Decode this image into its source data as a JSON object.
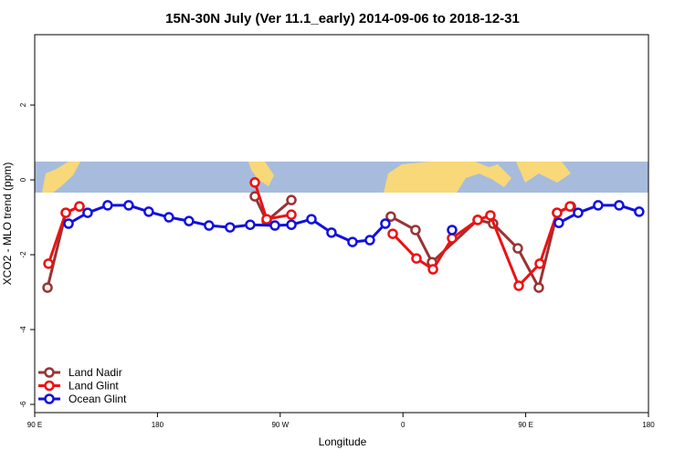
{
  "chart_data": {
    "type": "line",
    "title": "15N-30N July (Ver 11.1_early)   2014-09-06 to 2018-12-31",
    "x_label": "Longitude",
    "y_label": "XCO2 - MLO trend (ppm)",
    "xlim": [
      90,
      540
    ],
    "xticks": [
      {
        "value": 90,
        "label": "90 E"
      },
      {
        "value": 180,
        "label": "180"
      },
      {
        "value": 270,
        "label": "90 W"
      },
      {
        "value": 360,
        "label": "0"
      },
      {
        "value": 450,
        "label": "90 E"
      },
      {
        "value": 540,
        "label": "180"
      }
    ],
    "ylim": [
      -6.22,
      3.88
    ],
    "yticks": [
      -6,
      -4,
      -2,
      0,
      2
    ],
    "legend": "bottom-left",
    "series": [
      {
        "name": "Land Nadir",
        "color": "#993333",
        "x": [
          99.4,
          112.8,
          122.8,
          null,
          251.4,
          260.1,
          278.2,
          null,
          351.1,
          369.2,
          381.3,
          414.8,
          426.1,
          444.2,
          459.6,
          473.0,
          483.1
        ],
        "values": [
          -2.88,
          -0.88,
          -0.71,
          null,
          -0.44,
          -1.1,
          -0.54,
          null,
          -0.98,
          -1.34,
          -2.2,
          -1.07,
          -1.17,
          -1.83,
          -2.88,
          -0.88,
          -0.71
        ]
      },
      {
        "name": "Land Glint",
        "color": "#ee1111",
        "x": [
          100.1,
          112.8,
          122.8,
          null,
          251.4,
          260.1,
          278.2,
          null,
          352.5,
          369.9,
          382.0,
          396.0,
          414.8,
          424.1,
          444.9,
          460.3,
          473.0,
          482.4
        ],
        "values": [
          -2.24,
          -0.88,
          -0.71,
          null,
          -0.07,
          -1.05,
          -0.93,
          null,
          -1.44,
          -2.1,
          -2.39,
          -1.56,
          -1.07,
          -0.95,
          -2.83,
          -2.24,
          -0.88,
          -0.71
        ]
      },
      {
        "name": "Ocean Glint",
        "color": "#1111dd",
        "x": [
          114.8,
          128.8,
          143.5,
          158.9,
          173.6,
          188.4,
          203.1,
          217.8,
          233.2,
          248.0,
          266.1,
          278.2,
          292.9,
          307.6,
          323.0,
          335.7,
          347.1,
          null,
          396.0,
          null,
          474.3,
          488.4,
          503.1,
          518.5,
          533.2
        ],
        "values": [
          -1.17,
          -0.88,
          -0.68,
          -0.68,
          -0.85,
          -1.0,
          -1.1,
          -1.22,
          -1.27,
          -1.2,
          -1.22,
          -1.2,
          -1.05,
          -1.41,
          -1.66,
          -1.61,
          -1.17,
          null,
          -1.34,
          null,
          -1.15,
          -0.88,
          -0.68,
          -0.68,
          -0.85
        ]
      }
    ]
  }
}
